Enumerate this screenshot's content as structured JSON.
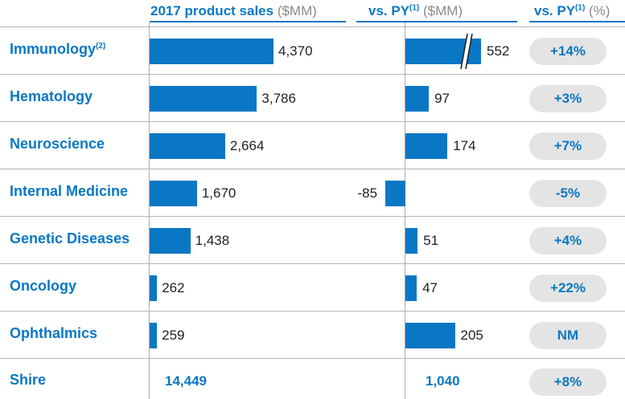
{
  "chart_data": {
    "type": "bar",
    "headers": {
      "sales": {
        "main": "2017 product sales",
        "unit": "($MM)"
      },
      "growth": {
        "main": "vs. PY",
        "sup": "(1)",
        "unit": "($MM)"
      },
      "pct": {
        "main": "vs. PY",
        "sup": "(1)",
        "unit": "(%)"
      }
    },
    "rows": [
      {
        "label": "Immunology",
        "sup": "(2)",
        "sales": 4370,
        "sales_label": "4,370",
        "delta": 552,
        "delta_label": "552",
        "delta_break": true,
        "pct": "+14%"
      },
      {
        "label": "Hematology",
        "sup": "",
        "sales": 3786,
        "sales_label": "3,786",
        "delta": 97,
        "delta_label": "97",
        "delta_break": false,
        "pct": "+3%"
      },
      {
        "label": "Neuroscience",
        "sup": "",
        "sales": 2664,
        "sales_label": "2,664",
        "delta": 174,
        "delta_label": "174",
        "delta_break": false,
        "pct": "+7%"
      },
      {
        "label": "Internal Medicine",
        "sup": "",
        "sales": 1670,
        "sales_label": "1,670",
        "delta": -85,
        "delta_label": "-85",
        "delta_break": false,
        "pct": "-5%"
      },
      {
        "label": "Genetic Diseases",
        "sup": "",
        "sales": 1438,
        "sales_label": "1,438",
        "delta": 51,
        "delta_label": "51",
        "delta_break": false,
        "pct": "+4%"
      },
      {
        "label": "Oncology",
        "sup": "",
        "sales": 262,
        "sales_label": "262",
        "delta": 47,
        "delta_label": "47",
        "delta_break": false,
        "pct": "+22%"
      },
      {
        "label": "Ophthalmics",
        "sup": "",
        "sales": 259,
        "sales_label": "259",
        "delta": 205,
        "delta_label": "205",
        "delta_break": false,
        "pct": "NM"
      }
    ],
    "total": {
      "label": "Shire",
      "sales_label": "14,449",
      "delta_label": "1,040",
      "pct": "+8%"
    },
    "colors": {
      "bar": "#0a77c4",
      "pill": "#e4e4e4",
      "text": "#0a77c4",
      "unit": "#8a8a8a"
    }
  }
}
